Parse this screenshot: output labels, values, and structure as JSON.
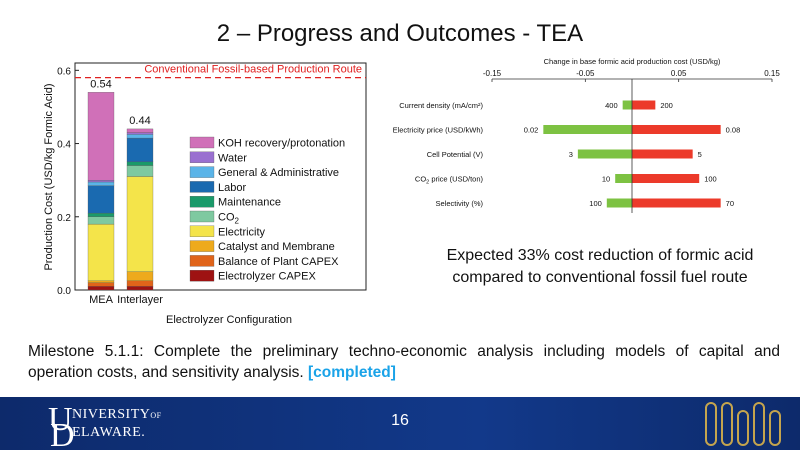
{
  "slide": {
    "title": "2 – Progress and Outcomes - TEA",
    "callout": "Expected 33% cost reduction of formic acid compared to conventional fossil fuel route",
    "milestone_text": "Milestone 5.1.1: Complete the preliminary techno-economic analysis including models of capital and operation costs, and sensitivity analysis.",
    "milestone_status": "[completed]",
    "page_number": "16",
    "footer": {
      "logo_initial_u": "U",
      "logo_line1": "NIVERSITY",
      "logo_of": "OF",
      "logo_initial_d": "D",
      "logo_line2": "ELAWARE."
    }
  },
  "chart_data": [
    {
      "type": "bar",
      "stacked": true,
      "categories": [
        "MEA",
        "Interlayer"
      ],
      "totals": [
        "0.54",
        "0.44"
      ],
      "ylabel": "Production Cost (USD/kg Formic Acid)",
      "xlabel": "Electrolyzer Configuration",
      "ylim": [
        0,
        0.62
      ],
      "yticks": [
        "0.0",
        "0.2",
        "0.4",
        "0.6"
      ],
      "reference_line": {
        "value": 0.58,
        "label": "Conventional Fossil-based Production Route",
        "color": "#e02020"
      },
      "series": [
        {
          "name": "Electrolyzer CAPEX",
          "color": "#9e1212",
          "values": [
            0.01,
            0.01
          ]
        },
        {
          "name": "Balance of Plant CAPEX",
          "color": "#e0641a",
          "values": [
            0.01,
            0.015
          ]
        },
        {
          "name": "Catalyst and Membrane",
          "color": "#eeaa1c",
          "values": [
            0.005,
            0.025
          ]
        },
        {
          "name": "Electricity",
          "color": "#f4e44a",
          "values": [
            0.155,
            0.26
          ]
        },
        {
          "name": "CO2",
          "color": "#7ec9a0",
          "values": [
            0.02,
            0.03
          ]
        },
        {
          "name": "Maintenance",
          "color": "#1a9a6a",
          "values": [
            0.01,
            0.01
          ]
        },
        {
          "name": "Labor",
          "color": "#1a6ab0",
          "values": [
            0.075,
            0.065
          ]
        },
        {
          "name": "General & Administrative",
          "color": "#5ab4e8",
          "values": [
            0.01,
            0.01
          ]
        },
        {
          "name": "Water",
          "color": "#9a70d0",
          "values": [
            0.005,
            0.005
          ]
        },
        {
          "name": "KOH recovery/protonation",
          "color": "#d070b8",
          "values": [
            0.24,
            0.01
          ]
        }
      ],
      "legend_position": "right"
    },
    {
      "type": "tornado",
      "title": "Change in base formic acid production cost (USD/kg)",
      "xlim": [
        -0.15,
        0.15
      ],
      "xticks": [
        "-0.15",
        "-0.05",
        "0.05",
        "0.15"
      ],
      "low_color": "#7dc242",
      "high_color": "#ec3a2a",
      "rows": [
        {
          "label": "Current density (mA/cm²)",
          "low": -0.01,
          "high": 0.025,
          "low_label": "400",
          "high_label": "200"
        },
        {
          "label": "Electricity price (USD/kWh)",
          "low": -0.095,
          "high": 0.095,
          "low_label": "0.02",
          "high_label": "0.08"
        },
        {
          "label": "Cell Potential (V)",
          "low": -0.058,
          "high": 0.065,
          "low_label": "3",
          "high_label": "5"
        },
        {
          "label_prefix": "CO",
          "label_sub": "2",
          "label_suffix": " price (USD/ton)",
          "low": -0.018,
          "high": 0.072,
          "low_label": "10",
          "high_label": "100"
        },
        {
          "label": "Selectivity (%)",
          "low": -0.027,
          "high": 0.095,
          "low_label": "100",
          "high_label": "70"
        }
      ]
    }
  ]
}
